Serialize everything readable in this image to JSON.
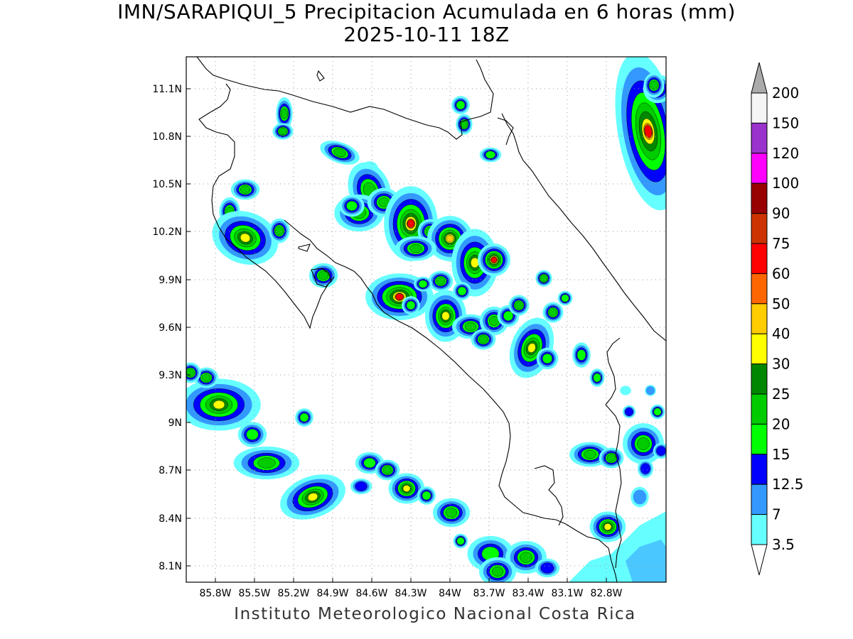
{
  "title": "IMN/SARAPIQUI_5 Precipitacion Acumulada en 6 horas (mm)",
  "subtitle": "2025-10-11 18Z",
  "footer": "Instituto Meteorologico Nacional Costa Rica",
  "map": {
    "lon_range": [
      -86.0,
      -83.0
    ],
    "lat_range": [
      8.0,
      11.3
    ],
    "lat_ticks": [
      "11.1N",
      "10.8N",
      "10.5N",
      "10.2N",
      "9.9N",
      "9.6N",
      "9.3N",
      "9N",
      "8.7N",
      "8.4N",
      "8.1N"
    ],
    "lon_ticks": [
      "85.8W",
      "85.5W",
      "85.2W",
      "84.9W",
      "84.6W",
      "84.3W",
      "84W",
      "83.7W",
      "83.4W",
      "83.1W",
      "82.8W"
    ],
    "grid": "dotted"
  },
  "legend": {
    "levels": [
      "200",
      "150",
      "120",
      "100",
      "90",
      "75",
      "60",
      "50",
      "40",
      "30",
      "25",
      "20",
      "15",
      "12.5",
      "7",
      "3.5"
    ],
    "colors": [
      "#aaaaaa",
      "#f5f5f5",
      "#9933cc",
      "#ff00ff",
      "#990000",
      "#cc3300",
      "#ff0000",
      "#ff6600",
      "#ffcc00",
      "#ffff00",
      "#008800",
      "#00cc00",
      "#00ff00",
      "#0000ff",
      "#3399ff",
      "#66ffff",
      "#ffffff"
    ]
  }
}
